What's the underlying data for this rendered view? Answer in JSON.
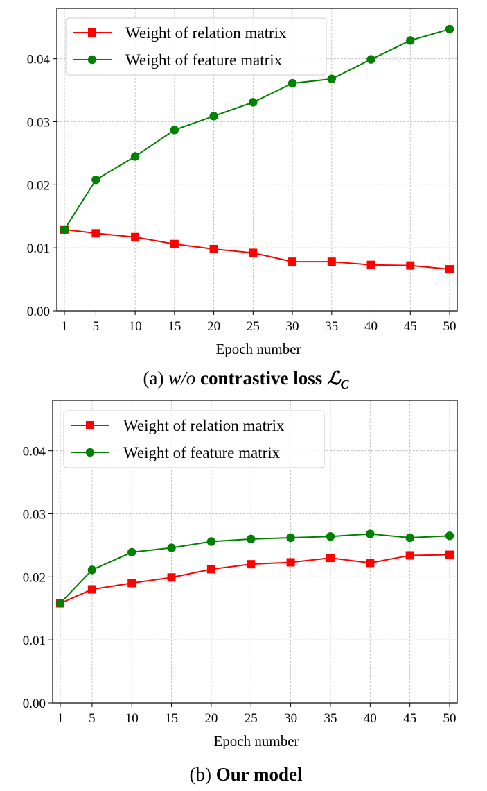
{
  "chart_data": [
    {
      "type": "line",
      "caption": {
        "prefix": "(a) ",
        "italic": "w/o",
        "bold": " contrastive loss ",
        "symbol": "ℒ",
        "subscript": "C"
      },
      "xlabel": "Epoch number",
      "ylabel": "",
      "x": [
        1,
        5,
        10,
        15,
        20,
        25,
        30,
        35,
        40,
        45,
        50
      ],
      "x_tick_labels": [
        "1",
        "5",
        "10",
        "15",
        "20",
        "25",
        "30",
        "35",
        "40",
        "45",
        "50"
      ],
      "y_ticks": [
        0.0,
        0.01,
        0.02,
        0.03,
        0.04
      ],
      "y_tick_labels": [
        "0.00",
        "0.01",
        "0.02",
        "0.03",
        "0.04"
      ],
      "ylim": [
        0.0,
        0.048
      ],
      "grid": true,
      "legend_position": "top-left",
      "series": [
        {
          "name": "Weight of relation matrix",
          "color": "#ff0000",
          "marker": "square",
          "values": [
            0.0129,
            0.0123,
            0.0117,
            0.0106,
            0.0098,
            0.0092,
            0.0078,
            0.0078,
            0.0073,
            0.0072,
            0.0066
          ]
        },
        {
          "name": "Weight of feature matrix",
          "color": "#008000",
          "marker": "circle",
          "values": [
            0.0129,
            0.0208,
            0.0245,
            0.0287,
            0.0309,
            0.0331,
            0.0361,
            0.0368,
            0.0399,
            0.0429,
            0.0447
          ]
        }
      ]
    },
    {
      "type": "line",
      "caption": {
        "prefix": "(b) ",
        "bold": "Our model"
      },
      "xlabel": "Epoch number",
      "ylabel": "",
      "x": [
        1,
        5,
        10,
        15,
        20,
        25,
        30,
        35,
        40,
        45,
        50
      ],
      "x_tick_labels": [
        "1",
        "5",
        "10",
        "15",
        "20",
        "25",
        "30",
        "35",
        "40",
        "45",
        "50"
      ],
      "y_ticks": [
        0.0,
        0.01,
        0.02,
        0.03,
        0.04
      ],
      "y_tick_labels": [
        "0.00",
        "0.01",
        "0.02",
        "0.03",
        "0.04"
      ],
      "ylim": [
        0.0,
        0.048
      ],
      "grid": true,
      "legend_position": "top-left",
      "series": [
        {
          "name": "Weight of relation matrix",
          "color": "#ff0000",
          "marker": "square",
          "values": [
            0.0158,
            0.018,
            0.019,
            0.0199,
            0.0212,
            0.022,
            0.0223,
            0.023,
            0.0222,
            0.0234,
            0.0235
          ]
        },
        {
          "name": "Weight of feature matrix",
          "color": "#008000",
          "marker": "circle",
          "values": [
            0.0158,
            0.0211,
            0.0239,
            0.0246,
            0.0256,
            0.026,
            0.0262,
            0.0264,
            0.0268,
            0.0262,
            0.0265
          ]
        }
      ]
    }
  ]
}
